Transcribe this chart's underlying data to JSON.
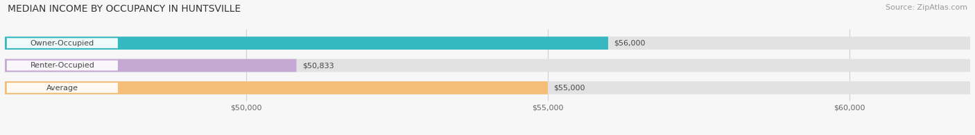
{
  "title": "MEDIAN INCOME BY OCCUPANCY IN HUNTSVILLE",
  "source": "Source: ZipAtlas.com",
  "categories": [
    "Owner-Occupied",
    "Renter-Occupied",
    "Average"
  ],
  "values": [
    56000,
    50833,
    55000
  ],
  "bar_colors": [
    "#35b8c0",
    "#c5a8d4",
    "#f5be78"
  ],
  "bar_labels": [
    "$56,000",
    "$50,833",
    "$55,000"
  ],
  "xlim": [
    46000,
    62000
  ],
  "xticks": [
    50000,
    55000,
    60000
  ],
  "xticklabels": [
    "$50,000",
    "$55,000",
    "$60,000"
  ],
  "bg_color": "#f7f7f7",
  "bar_bg_color": "#e2e2e2",
  "label_pill_color": "#ffffff",
  "title_fontsize": 10,
  "source_fontsize": 8,
  "label_fontsize": 8,
  "tick_fontsize": 8,
  "value_label_fontsize": 8
}
